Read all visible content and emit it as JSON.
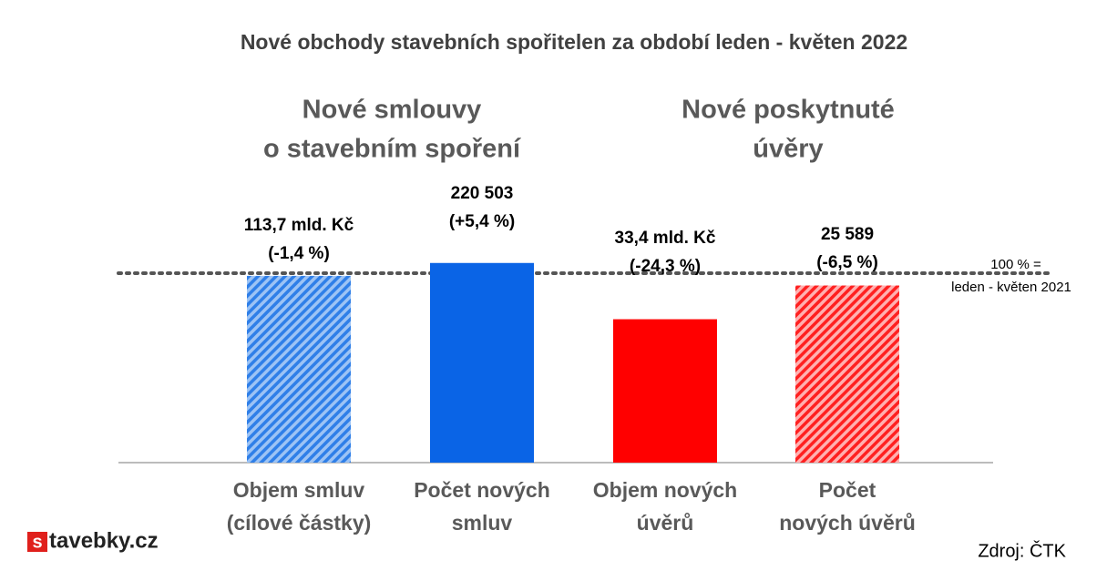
{
  "chart_data": {
    "type": "bar",
    "title": "Nové obchody stavebních spořitelen za období leden - květen 2022",
    "groups": [
      [
        "Nové smlouvy",
        "o stavebním spoření"
      ],
      [
        "Nové poskytnuté",
        "úvěry"
      ]
    ],
    "categories": [
      [
        "Objem smluv",
        "(cílové částky)"
      ],
      [
        "Počet  nových",
        "smluv"
      ],
      [
        "Objem nových",
        "úvěrů"
      ],
      [
        "Počet",
        "nových úvěrů"
      ]
    ],
    "amounts": [
      "113,7 mld. Kč",
      "220 503",
      "33,4 mld. Kč",
      "25 589"
    ],
    "values": [
      -1.4,
      5.4,
      -24.3,
      -6.5
    ],
    "value_labels": [
      "(-1,4 %)",
      "(+5,4 %)",
      "(-24,3 %)",
      "(-6,5 %)"
    ],
    "colors": [
      "#2f7fe8",
      "#0a64e6",
      "#ff0000",
      "#ff3030"
    ],
    "hatched": [
      true,
      false,
      false,
      true
    ],
    "ylim": [
      -100,
      20
    ],
    "reference_label": [
      "100 % =",
      "leden - květen 2021"
    ],
    "logo": [
      "s",
      "tavebky.cz"
    ],
    "source": "Zdroj: ČTK"
  }
}
